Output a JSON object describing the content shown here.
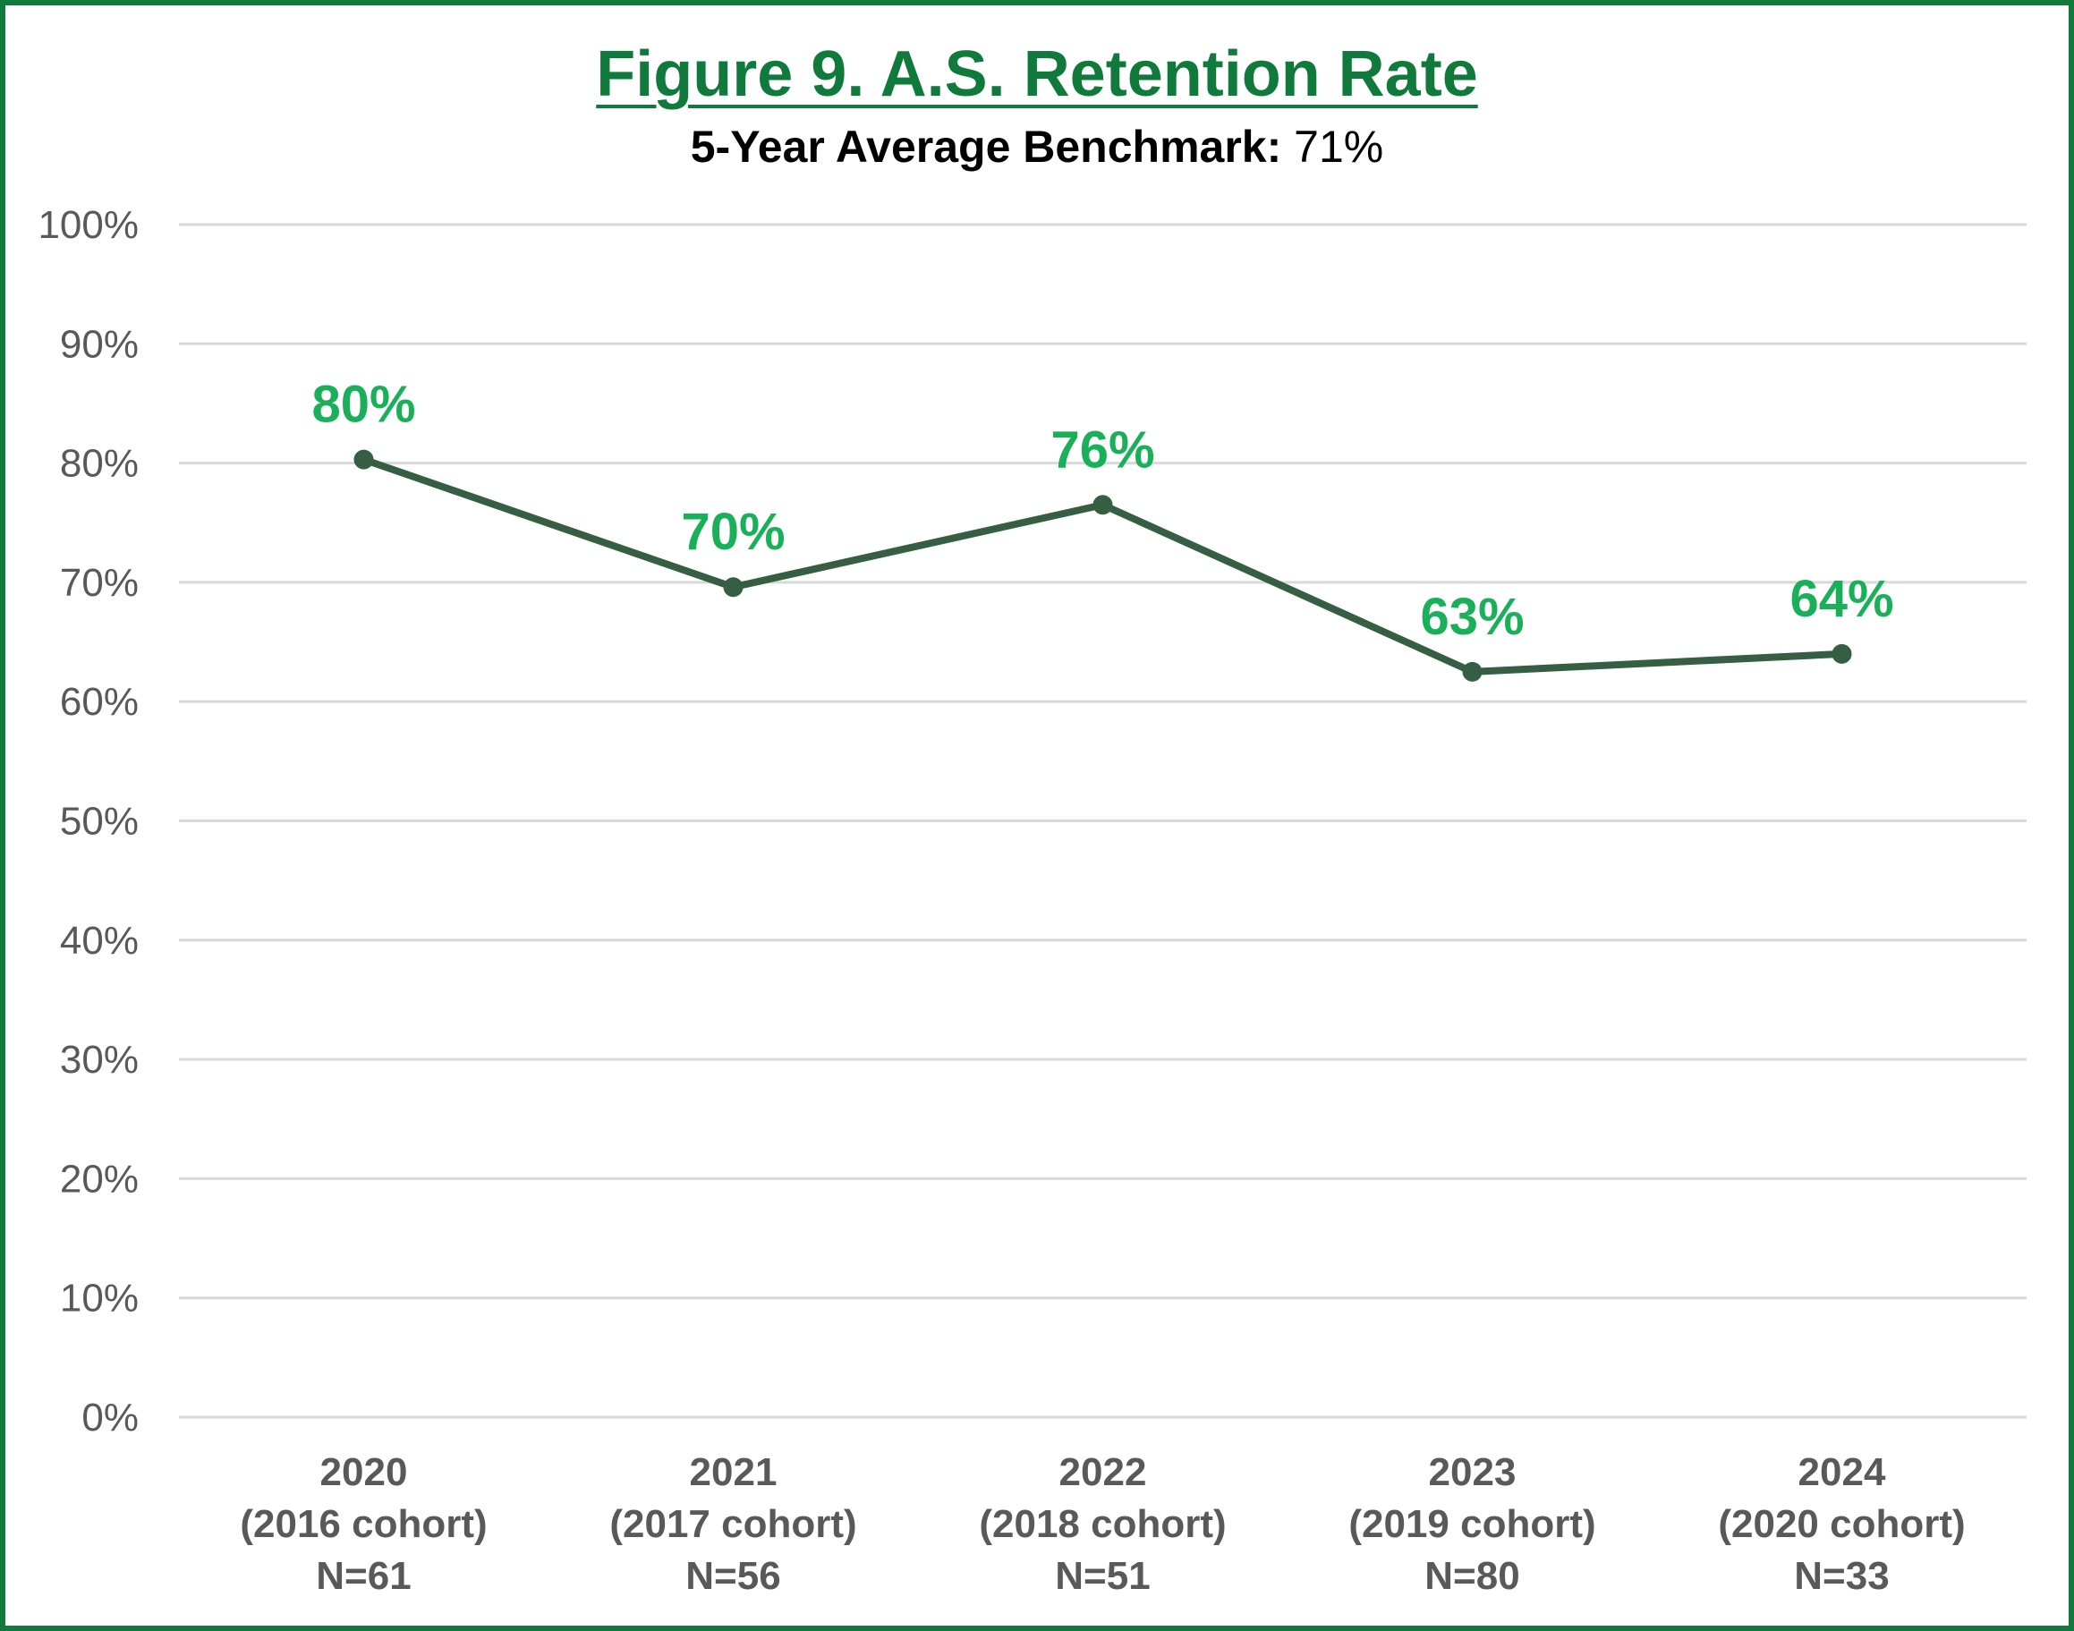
{
  "chart_data": {
    "type": "line",
    "title": "Figure 9. A.S. Retention Rate",
    "subtitle_label": "5-Year Average Benchmark:",
    "subtitle_value": "71%",
    "categories": [
      [
        "2020",
        "(2016 cohort)",
        "N=61"
      ],
      [
        "2021",
        "(2017 cohort)",
        "N=56"
      ],
      [
        "2022",
        "(2018 cohort)",
        "N=51"
      ],
      [
        "2023",
        "(2019 cohort)",
        "N=80"
      ],
      [
        "2024",
        "(2020 cohort)",
        "N=33"
      ]
    ],
    "values": [
      80.3,
      69.6,
      76.5,
      62.5,
      64
    ],
    "data_labels": [
      "80%",
      "70%",
      "76%",
      "63%",
      "64%"
    ],
    "y_ticks": [
      "0%",
      "10%",
      "20%",
      "30%",
      "40%",
      "50%",
      "60%",
      "70%",
      "80%",
      "90%",
      "100%"
    ],
    "ylim": [
      0,
      100
    ],
    "grid": true,
    "legend": "none",
    "colors": {
      "line": "#355e42",
      "data_label": "#1ab05a",
      "title": "#0f7a3c",
      "frame": "#0f7a3c",
      "grid": "#d9d9d9",
      "axis_text": "#595959"
    }
  }
}
